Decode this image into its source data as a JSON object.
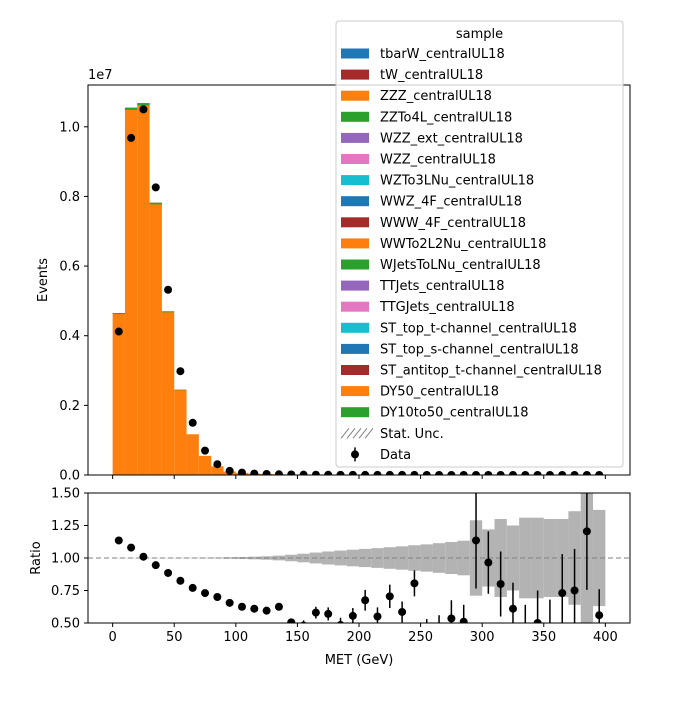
{
  "chart_data": [
    {
      "type": "bar",
      "stacked": true,
      "xlabel": "",
      "ylabel": "Events",
      "offset_label": "1e7",
      "xlim": [
        -20,
        420
      ],
      "ylim": [
        0,
        1.12
      ],
      "bin_width": 10,
      "bin_edges_start": 0,
      "xticks": [
        0,
        50,
        100,
        150,
        200,
        250,
        300,
        350,
        400
      ],
      "yticks": [
        "0.0",
        "0.2",
        "0.4",
        "0.6",
        "0.8",
        "1.0"
      ],
      "yticks_values": [
        0,
        0.2,
        0.4,
        0.6,
        0.8,
        1.0
      ],
      "mc_total": [
        0.465,
        1.055,
        1.068,
        0.782,
        0.47,
        0.245,
        0.117,
        0.055,
        0.025,
        0.01,
        0.006,
        0.004,
        0.003,
        0.002,
        0.0015,
        0.001,
        0.0008,
        0.0006,
        0.0005,
        0.0004,
        0.0003,
        0.0003,
        0.0002,
        0.0002,
        0.0002,
        0.0001,
        0.0001,
        0.0001,
        0.0001,
        0.0001,
        0.0001,
        0.0001,
        0.0001,
        0.0001,
        0.0001,
        0.0001,
        0.0001,
        0.0001,
        0.0001,
        0.0001
      ],
      "dy10to50_fraction_top": 0.006,
      "data_x": [
        5,
        15,
        25,
        35,
        45,
        55,
        65,
        75,
        85,
        95,
        105,
        115,
        125,
        135,
        145,
        155,
        165,
        175,
        185,
        195,
        205,
        215,
        225,
        235,
        245,
        255,
        265,
        275,
        285,
        295,
        305,
        315,
        325,
        335,
        345,
        355,
        365,
        375,
        385,
        395
      ],
      "data_y": [
        0.412,
        0.968,
        1.05,
        0.826,
        0.532,
        0.298,
        0.15,
        0.07,
        0.031,
        0.012,
        0.007,
        0.004,
        0.003,
        0.002,
        0.0015,
        0.001,
        0.0008,
        0.0006,
        0.0005,
        0.0004,
        0.0003,
        0.0003,
        0.0002,
        0.0002,
        0.0002,
        0.0001,
        0.0001,
        0.0001,
        0.0001,
        0.0001,
        0.0001,
        0.0001,
        0.0001,
        0.0001,
        0.0001,
        0.0001,
        0.0001,
        0.0001,
        0.0001,
        0.0001
      ],
      "legend": {
        "title": "sample",
        "placement": "top-right",
        "entries": [
          {
            "label": "tbarW_centralUL18",
            "color": "#1f77b4",
            "kind": "patch"
          },
          {
            "label": "tW_centralUL18",
            "color": "#a52a2a",
            "kind": "patch"
          },
          {
            "label": "ZZZ_centralUL18",
            "color": "#ff7f0e",
            "kind": "patch"
          },
          {
            "label": "ZZTo4L_centralUL18",
            "color": "#2ca02c",
            "kind": "patch"
          },
          {
            "label": "WZZ_ext_centralUL18",
            "color": "#9467bd",
            "kind": "patch"
          },
          {
            "label": "WZZ_centralUL18",
            "color": "#e377c2",
            "kind": "patch"
          },
          {
            "label": "WZTo3LNu_centralUL18",
            "color": "#17becf",
            "kind": "patch"
          },
          {
            "label": "WWZ_4F_centralUL18",
            "color": "#1f77b4",
            "kind": "patch"
          },
          {
            "label": "WWW_4F_centralUL18",
            "color": "#a52a2a",
            "kind": "patch"
          },
          {
            "label": "WWTo2L2Nu_centralUL18",
            "color": "#ff7f0e",
            "kind": "patch"
          },
          {
            "label": "WJetsToLNu_centralUL18",
            "color": "#2ca02c",
            "kind": "patch"
          },
          {
            "label": "TTJets_centralUL18",
            "color": "#9467bd",
            "kind": "patch"
          },
          {
            "label": "TTGJets_centralUL18",
            "color": "#e377c2",
            "kind": "patch"
          },
          {
            "label": "ST_top_t-channel_centralUL18",
            "color": "#17becf",
            "kind": "patch"
          },
          {
            "label": "ST_top_s-channel_centralUL18",
            "color": "#1f77b4",
            "kind": "patch"
          },
          {
            "label": "ST_antitop_t-channel_centralUL18",
            "color": "#a52a2a",
            "kind": "patch"
          },
          {
            "label": "DY50_centralUL18",
            "color": "#ff7f0e",
            "kind": "patch"
          },
          {
            "label": "DY10to50_centralUL18",
            "color": "#2ca02c",
            "kind": "patch"
          },
          {
            "label": "Stat. Unc.",
            "color": "#808080",
            "kind": "hatch"
          },
          {
            "label": "Data",
            "color": "#000000",
            "kind": "errorbar"
          }
        ]
      }
    },
    {
      "type": "scatter",
      "xlabel": "MET (GeV)",
      "ylabel": "Ratio",
      "xlim": [
        -20,
        420
      ],
      "ylim": [
        0.5,
        1.5
      ],
      "xticks": [
        0,
        50,
        100,
        150,
        200,
        250,
        300,
        350,
        400
      ],
      "yticks": [
        "0.50",
        "0.75",
        "1.00",
        "1.25",
        "1.50"
      ],
      "yticks_values": [
        0.5,
        0.75,
        1.0,
        1.25,
        1.5
      ],
      "reference_line": 1.0,
      "unc_band_halfwidth": [
        0.001,
        0.001,
        0.001,
        0.001,
        0.001,
        0.002,
        0.002,
        0.003,
        0.004,
        0.006,
        0.008,
        0.01,
        0.013,
        0.018,
        0.025,
        0.033,
        0.042,
        0.05,
        0.057,
        0.064,
        0.07,
        0.076,
        0.083,
        0.09,
        0.098,
        0.105,
        0.114,
        0.123,
        0.133,
        0.29,
        0.22,
        0.3,
        0.25,
        0.31,
        0.31,
        0.3,
        0.3,
        0.36,
        0.5,
        0.37
      ],
      "points": [
        {
          "x": 5,
          "y": 1.135,
          "err": 0.0
        },
        {
          "x": 15,
          "y": 1.08,
          "err": 0.0
        },
        {
          "x": 25,
          "y": 1.01,
          "err": 0.0
        },
        {
          "x": 35,
          "y": 0.945,
          "err": 0.0
        },
        {
          "x": 45,
          "y": 0.885,
          "err": 0.0
        },
        {
          "x": 55,
          "y": 0.825,
          "err": 0.0
        },
        {
          "x": 65,
          "y": 0.77,
          "err": 0.0
        },
        {
          "x": 75,
          "y": 0.73,
          "err": 0.0
        },
        {
          "x": 85,
          "y": 0.7,
          "err": 0.0
        },
        {
          "x": 95,
          "y": 0.655,
          "err": 0.005
        },
        {
          "x": 105,
          "y": 0.625,
          "err": 0.008
        },
        {
          "x": 115,
          "y": 0.61,
          "err": 0.012
        },
        {
          "x": 125,
          "y": 0.595,
          "err": 0.015
        },
        {
          "x": 135,
          "y": 0.625,
          "err": 0.02
        },
        {
          "x": 145,
          "y": 0.505,
          "err": 0.03
        },
        {
          "x": 155,
          "y": 0.48,
          "err": 0.04
        },
        {
          "x": 165,
          "y": 0.58,
          "err": 0.045
        },
        {
          "x": 175,
          "y": 0.57,
          "err": 0.05
        },
        {
          "x": 185,
          "y": 0.485,
          "err": 0.055
        },
        {
          "x": 195,
          "y": 0.555,
          "err": 0.06
        },
        {
          "x": 205,
          "y": 0.675,
          "err": 0.08
        },
        {
          "x": 215,
          "y": 0.55,
          "err": 0.07
        },
        {
          "x": 225,
          "y": 0.705,
          "err": 0.09
        },
        {
          "x": 235,
          "y": 0.585,
          "err": 0.08
        },
        {
          "x": 245,
          "y": 0.805,
          "err": 0.1
        },
        {
          "x": 255,
          "y": 0.44,
          "err": 0.09
        },
        {
          "x": 265,
          "y": 0.46,
          "err": 0.1
        },
        {
          "x": 275,
          "y": 0.535,
          "err": 0.14
        },
        {
          "x": 285,
          "y": 0.51,
          "err": 0.13
        },
        {
          "x": 295,
          "y": 1.135,
          "err": 0.37
        },
        {
          "x": 305,
          "y": 0.965,
          "err": 0.24
        },
        {
          "x": 315,
          "y": 0.8,
          "err": 0.25
        },
        {
          "x": 325,
          "y": 0.61,
          "err": 0.2
        },
        {
          "x": 335,
          "y": 0.44,
          "err": 0.2
        },
        {
          "x": 345,
          "y": 0.5,
          "err": 0.25
        },
        {
          "x": 355,
          "y": 0.43,
          "err": 0.25
        },
        {
          "x": 365,
          "y": 0.73,
          "err": 0.3
        },
        {
          "x": 375,
          "y": 0.75,
          "err": 0.32
        },
        {
          "x": 385,
          "y": 1.205,
          "err": 0.45
        },
        {
          "x": 395,
          "y": 0.56,
          "err": 0.2
        }
      ]
    }
  ]
}
